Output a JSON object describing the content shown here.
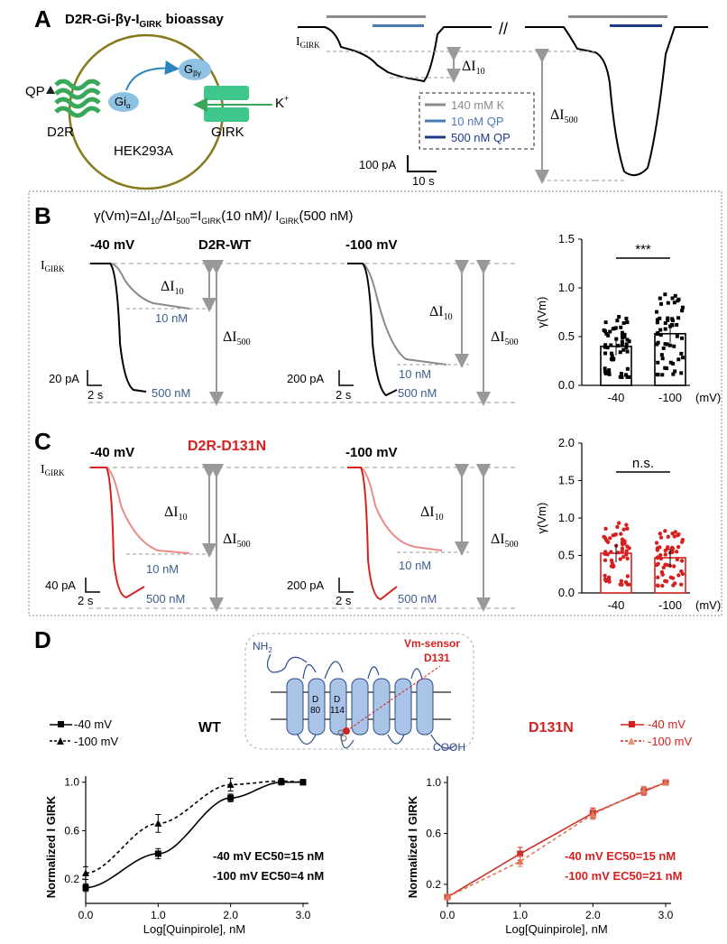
{
  "panelA": {
    "letter": "A",
    "title": "D2R-Gi-βγ-I",
    "title_sub": "GIRK",
    "title_suffix": " bioassay",
    "cell": {
      "qp": "QP",
      "gi": "Gi",
      "gi_sub": "α",
      "gbg": "G",
      "gbg_sub": "βγ",
      "k": "K",
      "k_sup": "+",
      "d2r": "D2R",
      "hek": "HEK293A",
      "girk": "GIRK"
    },
    "trace": {
      "igirk": "I",
      "igirk_sub": "GIRK",
      "d10": "ΔI",
      "d10_sub": "10",
      "d500": "ΔI",
      "d500_sub": "500",
      "scale_y": "100 pA",
      "scale_x": "10 s"
    },
    "legend": [
      {
        "label": "140 mM K",
        "color": "#8c8c8c"
      },
      {
        "label": "10 nM QP",
        "color": "#4a7ab5"
      },
      {
        "label": "500 nM QP",
        "color": "#1f3a8a"
      }
    ]
  },
  "panelB": {
    "letter": "B",
    "formula": "γ(Vm)=ΔI",
    "formula_parts": [
      "10",
      "/ΔI",
      "500",
      "=I",
      "GIRK",
      "(10 nM)/ I",
      "GIRK",
      "(500 nM)"
    ],
    "title": "D2R-WT",
    "left": {
      "vm": "-40 mV",
      "igirk": "I",
      "igirk_sub": "GIRK",
      "d10": "ΔI",
      "d10_sub": "10",
      "d500": "ΔI",
      "d500_sub": "500",
      "c10": "10 nM",
      "c500": "500 nM",
      "scale_y": "20 pA",
      "scale_x": "2 s"
    },
    "right": {
      "vm": "-100 mV",
      "d10": "ΔI",
      "d10_sub": "10",
      "d500": "ΔI",
      "d500_sub": "500",
      "c10": "10 nM",
      "c500": "500 nM",
      "scale_y": "200 pA",
      "scale_x": "2 s"
    },
    "bar": {
      "ylabel": "γ(Vm)",
      "yticks": [
        "0.0",
        "0.5",
        "1.0",
        "1.5"
      ],
      "xticks": [
        "-40",
        "-100"
      ],
      "xunit": "(mV)",
      "sig": "***"
    }
  },
  "panelC": {
    "letter": "C",
    "title": "D2R-D131N",
    "left": {
      "vm": "-40 mV",
      "igirk": "I",
      "igirk_sub": "GIRK",
      "d10": "ΔI",
      "d10_sub": "10",
      "d500": "ΔI",
      "d500_sub": "500",
      "c10": "10 nM",
      "c500": "500 nM",
      "scale_y": "40 pA",
      "scale_x": "2 s"
    },
    "right": {
      "vm": "-100 mV",
      "d10": "ΔI",
      "d10_sub": "10",
      "d500": "ΔI",
      "d500_sub": "500",
      "c10": "10 nM",
      "c500": "500 nM",
      "scale_y": "200 pA",
      "scale_x": "2 s"
    },
    "bar": {
      "ylabel": "γ(Vm)",
      "yticks": [
        "0.0",
        "0.5",
        "1.0",
        "1.5",
        "2.0"
      ],
      "xticks": [
        "-40",
        "-100"
      ],
      "xunit": "(mV)",
      "sig": "n.s."
    }
  },
  "panelD": {
    "letter": "D",
    "receptor": {
      "nh2": "NH",
      "nh2_sub": "2",
      "cooh": "COOH",
      "d80a": "D",
      "d80b": "80",
      "d114a": "D",
      "d114b": "114",
      "sensor1": "Vm-sensor",
      "sensor2": "D131"
    },
    "wt_label": "WT",
    "mut_label": "D131N",
    "legend": [
      "-40 mV",
      "-100 mV"
    ]
  },
  "colors": {
    "wt": "#000000",
    "wt_light": "#8a8a8a",
    "mut": "#d62020",
    "mut_light": "#ec8a8a",
    "blue_label": "#3b5f8f",
    "green": "#3aa85a",
    "cell": "#857a1e",
    "gbg": "#8fc1e3",
    "arrow": "#2a86b8"
  },
  "chart_data": [
    {
      "type": "bar",
      "title": "D2R-WT γ(Vm)",
      "categories": [
        "-40",
        "-100"
      ],
      "values": [
        0.4,
        0.53
      ],
      "ylabel": "γ(Vm)",
      "xlabel": "(mV)",
      "ylim": [
        0,
        1.5
      ],
      "annotation": "***"
    },
    {
      "type": "bar",
      "title": "D2R-D131N γ(Vm)",
      "categories": [
        "-40",
        "-100"
      ],
      "values": [
        0.53,
        0.47
      ],
      "ylabel": "γ(Vm)",
      "xlabel": "(mV)",
      "ylim": [
        0,
        2.0
      ],
      "annotation": "n.s."
    },
    {
      "type": "line",
      "title": "WT",
      "xlabel": "Log[Quinpirole], nM",
      "ylabel": "Normalized I GIRK",
      "xlim": [
        0,
        3
      ],
      "ylim": [
        0,
        1.05
      ],
      "xticks": [
        "0.0",
        "1.0",
        "2.0",
        "3.0"
      ],
      "yticks": [
        "0.2",
        "0.6",
        "1.0"
      ],
      "series": [
        {
          "name": "-40 mV",
          "x": [
            0,
            1,
            2,
            2.7,
            3
          ],
          "y": [
            0.13,
            0.41,
            0.87,
            1.0,
            1.0
          ],
          "err": [
            0.03,
            0.04,
            0.03,
            0.02,
            0.02
          ],
          "ec50": "-40 mV EC50=15 nM"
        },
        {
          "name": "-100 mV",
          "x": [
            0,
            1,
            2,
            2.7,
            3
          ],
          "y": [
            0.25,
            0.66,
            0.98,
            1.01,
            1.0
          ],
          "err": [
            0.05,
            0.07,
            0.05,
            0.02,
            0.02
          ],
          "ec50": "-100 mV EC50=4 nM"
        }
      ]
    },
    {
      "type": "line",
      "title": "D131N",
      "xlabel": "Log[Quinpirole], nM",
      "ylabel": "Normalized I GIRK",
      "xlim": [
        0,
        3
      ],
      "ylim": [
        0.05,
        1.05
      ],
      "xticks": [
        "0.0",
        "1.0",
        "2.0",
        "3.0"
      ],
      "yticks": [
        "0.2",
        "0.6",
        "1.0"
      ],
      "series": [
        {
          "name": "-40 mV",
          "x": [
            0,
            1,
            2,
            2.7,
            3
          ],
          "y": [
            0.1,
            0.44,
            0.76,
            0.93,
            1.0
          ],
          "err": [
            0.02,
            0.05,
            0.04,
            0.03,
            0.02
          ],
          "ec50": "-40 mV EC50=15 nM"
        },
        {
          "name": "-100 mV",
          "x": [
            0,
            1,
            2,
            2.7,
            3
          ],
          "y": [
            0.1,
            0.38,
            0.75,
            0.94,
            1.0
          ],
          "err": [
            0.02,
            0.04,
            0.04,
            0.03,
            0.02
          ],
          "ec50": "-100 mV EC50=21 nM"
        }
      ]
    }
  ]
}
